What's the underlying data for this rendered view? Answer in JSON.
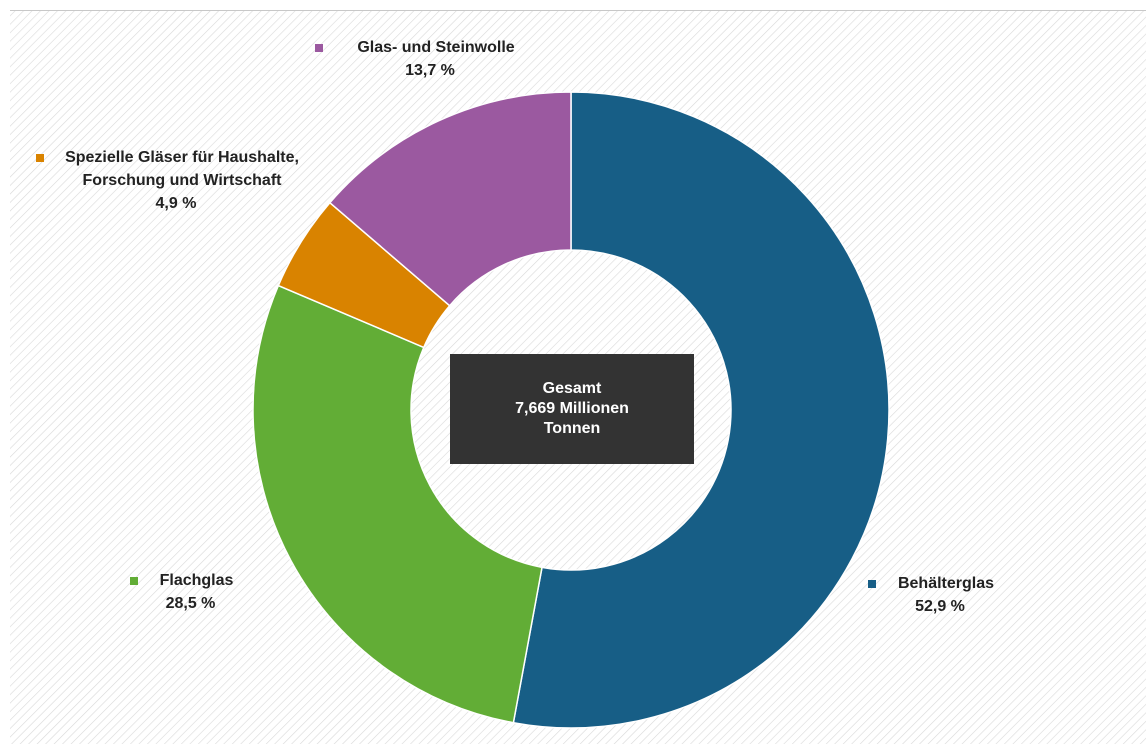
{
  "chart_data": {
    "type": "donut",
    "categories": [
      "Behälterglas",
      "Flachglas",
      "Spezielle Gläser für Haushalte, Forschung und Wirtschaft",
      "Glas- und Steinwolle"
    ],
    "values": [
      52.9,
      28.5,
      4.9,
      13.7
    ],
    "value_labels": [
      "52,9 %",
      "28,5 %",
      "4,9 %",
      "13,7 %"
    ],
    "colors": [
      "#175e86",
      "#62ad36",
      "#d98300",
      "#9b59a0"
    ],
    "center_label": [
      "Gesamt",
      "7,669 Millionen",
      "Tonnen"
    ]
  }
}
